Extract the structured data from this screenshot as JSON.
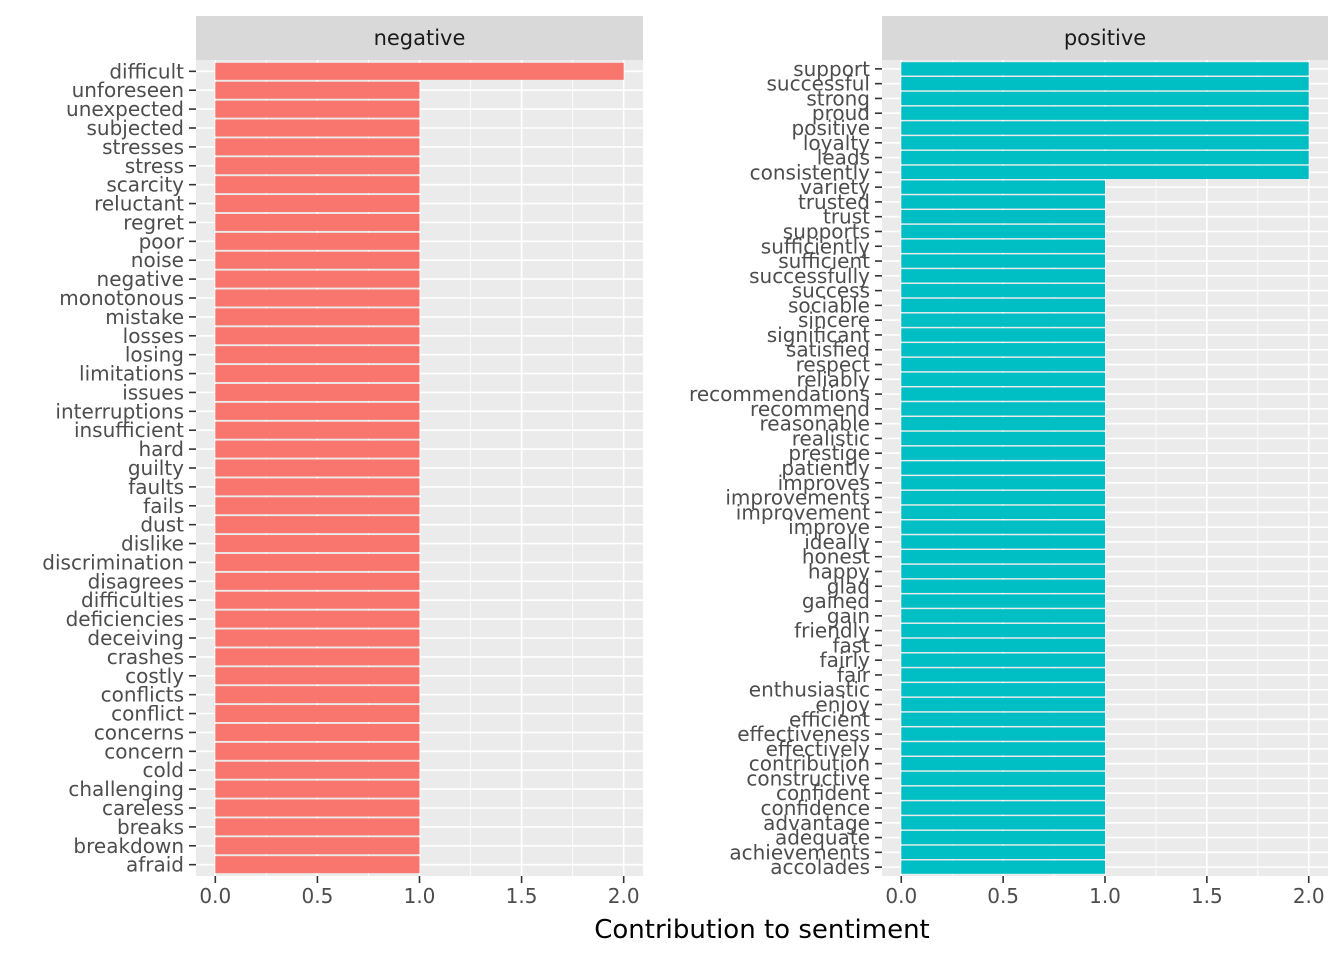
{
  "chart_data": {
    "type": "bar",
    "orientation": "horizontal",
    "xlabel": "Contribution to sentiment",
    "ylabel": "",
    "xlim": [
      0,
      2.05
    ],
    "xticks": [
      "0.0",
      "0.5",
      "1.0",
      "1.5",
      "2.0"
    ],
    "grid": true,
    "colors": {
      "negative": "#F8766D",
      "positive": "#00BFC4"
    },
    "panels": [
      {
        "name": "negative",
        "words": [
          "difficult",
          "unforeseen",
          "unexpected",
          "subjected",
          "stresses",
          "stress",
          "scarcity",
          "reluctant",
          "regret",
          "poor",
          "noise",
          "negative",
          "monotonous",
          "mistake",
          "losses",
          "losing",
          "limitations",
          "issues",
          "interruptions",
          "insufficient",
          "hard",
          "guilty",
          "faults",
          "fails",
          "dust",
          "dislike",
          "discrimination",
          "disagrees",
          "difficulties",
          "deficiencies",
          "deceiving",
          "crashes",
          "costly",
          "conflicts",
          "conflict",
          "concerns",
          "concern",
          "cold",
          "challenging",
          "careless",
          "breaks",
          "breakdown",
          "afraid"
        ],
        "values": [
          2,
          1,
          1,
          1,
          1,
          1,
          1,
          1,
          1,
          1,
          1,
          1,
          1,
          1,
          1,
          1,
          1,
          1,
          1,
          1,
          1,
          1,
          1,
          1,
          1,
          1,
          1,
          1,
          1,
          1,
          1,
          1,
          1,
          1,
          1,
          1,
          1,
          1,
          1,
          1,
          1,
          1,
          1
        ]
      },
      {
        "name": "positive",
        "words": [
          "support",
          "successful",
          "strong",
          "proud",
          "positive",
          "loyalty",
          "leads",
          "consistently",
          "variety",
          "trusted",
          "trust",
          "supports",
          "sufficiently",
          "sufficient",
          "successfully",
          "success",
          "sociable",
          "sincere",
          "significant",
          "satisfied",
          "respect",
          "reliably",
          "recommendations",
          "recommend",
          "reasonable",
          "realistic",
          "prestige",
          "patiently",
          "improves",
          "improvements",
          "improvement",
          "improve",
          "ideally",
          "honest",
          "happy",
          "glad",
          "gained",
          "gain",
          "friendly",
          "fast",
          "fairly",
          "fair",
          "enthusiastic",
          "enjoy",
          "efficient",
          "effectiveness",
          "effectively",
          "contribution",
          "constructive",
          "confident",
          "confidence",
          "advantage",
          "adequate",
          "achievements",
          "accolades"
        ],
        "values": [
          2,
          2,
          2,
          2,
          2,
          2,
          2,
          2,
          1,
          1,
          1,
          1,
          1,
          1,
          1,
          1,
          1,
          1,
          1,
          1,
          1,
          1,
          1,
          1,
          1,
          1,
          1,
          1,
          1,
          1,
          1,
          1,
          1,
          1,
          1,
          1,
          1,
          1,
          1,
          1,
          1,
          1,
          1,
          1,
          1,
          1,
          1,
          1,
          1,
          1,
          1,
          1,
          1,
          1,
          1
        ]
      }
    ]
  }
}
